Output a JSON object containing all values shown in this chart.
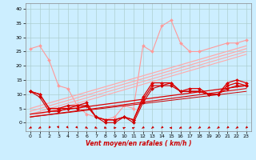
{
  "bg_color": "#cceeff",
  "grid_color": "#aacccc",
  "xlabel": "Vent moyen/en rafales ( km/h )",
  "xlim": [
    -0.5,
    23.5
  ],
  "ylim": [
    -3,
    42
  ],
  "yticks": [
    0,
    5,
    10,
    15,
    20,
    25,
    30,
    35,
    40
  ],
  "xticks": [
    0,
    1,
    2,
    3,
    4,
    5,
    6,
    7,
    8,
    9,
    10,
    11,
    12,
    13,
    14,
    15,
    16,
    17,
    18,
    19,
    20,
    21,
    22,
    23
  ],
  "series": [
    {
      "name": "rafales_pink_line",
      "color": "#ff9999",
      "lw": 0.8,
      "marker": "D",
      "markersize": 2,
      "x": [
        0,
        1,
        2,
        3,
        4,
        5,
        6,
        7,
        8,
        9,
        10,
        11,
        12,
        13,
        14,
        15,
        16,
        17,
        18,
        21,
        22,
        23
      ],
      "y": [
        26,
        27,
        22,
        13,
        12,
        6,
        3,
        2,
        1,
        2,
        6,
        5,
        27,
        25,
        34,
        36,
        28,
        25,
        25,
        28,
        28,
        29
      ]
    },
    {
      "name": "linear_pink1",
      "color": "#ffaaaa",
      "lw": 0.9,
      "marker": null,
      "x": [
        0,
        23
      ],
      "y": [
        5,
        27
      ]
    },
    {
      "name": "linear_pink2",
      "color": "#ffaaaa",
      "lw": 0.9,
      "marker": null,
      "x": [
        0,
        23
      ],
      "y": [
        4,
        26
      ]
    },
    {
      "name": "linear_pink3",
      "color": "#ffaaaa",
      "lw": 0.8,
      "marker": null,
      "x": [
        0,
        23
      ],
      "y": [
        3,
        25
      ]
    },
    {
      "name": "linear_pink4",
      "color": "#ffaaaa",
      "lw": 0.8,
      "marker": null,
      "x": [
        0,
        23
      ],
      "y": [
        2,
        24
      ]
    },
    {
      "name": "vent_red1",
      "color": "#dd0000",
      "lw": 0.9,
      "marker": "D",
      "markersize": 2,
      "x": [
        0,
        1,
        2,
        3,
        4,
        5,
        6,
        7,
        8,
        9,
        10,
        11,
        12,
        13,
        14,
        15,
        16,
        17,
        18,
        19,
        20,
        21,
        22,
        23
      ],
      "y": [
        11,
        10,
        5,
        5,
        6,
        6,
        7,
        2,
        1,
        1,
        2,
        1,
        9,
        14,
        14,
        14,
        11,
        12,
        12,
        10,
        10,
        14,
        15,
        14
      ]
    },
    {
      "name": "vent_red2",
      "color": "#dd0000",
      "lw": 0.9,
      "marker": "D",
      "markersize": 2,
      "x": [
        0,
        1,
        2,
        3,
        4,
        5,
        6,
        7,
        8,
        9,
        10,
        11,
        12,
        13,
        14,
        15,
        16,
        17,
        18,
        19,
        20,
        21,
        22,
        23
      ],
      "y": [
        11,
        10,
        5,
        5,
        5,
        6,
        6,
        2,
        1,
        1,
        2,
        1,
        8,
        13,
        13,
        14,
        11,
        11,
        11,
        10,
        10,
        13,
        14,
        13
      ]
    },
    {
      "name": "vent_red3",
      "color": "#cc0000",
      "lw": 0.8,
      "marker": "D",
      "markersize": 2,
      "x": [
        0,
        1,
        2,
        3,
        4,
        5,
        6,
        7,
        8,
        9,
        10,
        11,
        12,
        13,
        14,
        15,
        16,
        17,
        18,
        19,
        20,
        21,
        22,
        23
      ],
      "y": [
        11,
        9,
        4,
        4,
        5,
        5,
        6,
        2,
        0,
        0,
        2,
        0,
        7,
        12,
        13,
        13,
        11,
        11,
        11,
        10,
        10,
        12,
        13,
        13
      ]
    },
    {
      "name": "linear_red1",
      "color": "#dd0000",
      "lw": 0.9,
      "marker": null,
      "x": [
        0,
        23
      ],
      "y": [
        3,
        13
      ]
    },
    {
      "name": "linear_red2",
      "color": "#dd0000",
      "lw": 0.8,
      "marker": null,
      "x": [
        0,
        23
      ],
      "y": [
        2,
        12
      ]
    },
    {
      "name": "linear_red3",
      "color": "#cc0000",
      "lw": 0.7,
      "marker": null,
      "x": [
        0,
        23
      ],
      "y": [
        2,
        11
      ]
    }
  ],
  "arrows": {
    "x": [
      0,
      1,
      2,
      3,
      4,
      5,
      6,
      7,
      8,
      9,
      10,
      11,
      12,
      13,
      14,
      15,
      16,
      17,
      18,
      19,
      20,
      21,
      22,
      23
    ],
    "color": "#cc0000",
    "angles_deg": [
      225,
      225,
      200,
      170,
      160,
      155,
      135,
      130,
      125,
      90,
      50,
      45,
      220,
      215,
      210,
      270,
      230,
      220,
      215,
      220,
      215,
      210,
      215,
      210
    ]
  }
}
